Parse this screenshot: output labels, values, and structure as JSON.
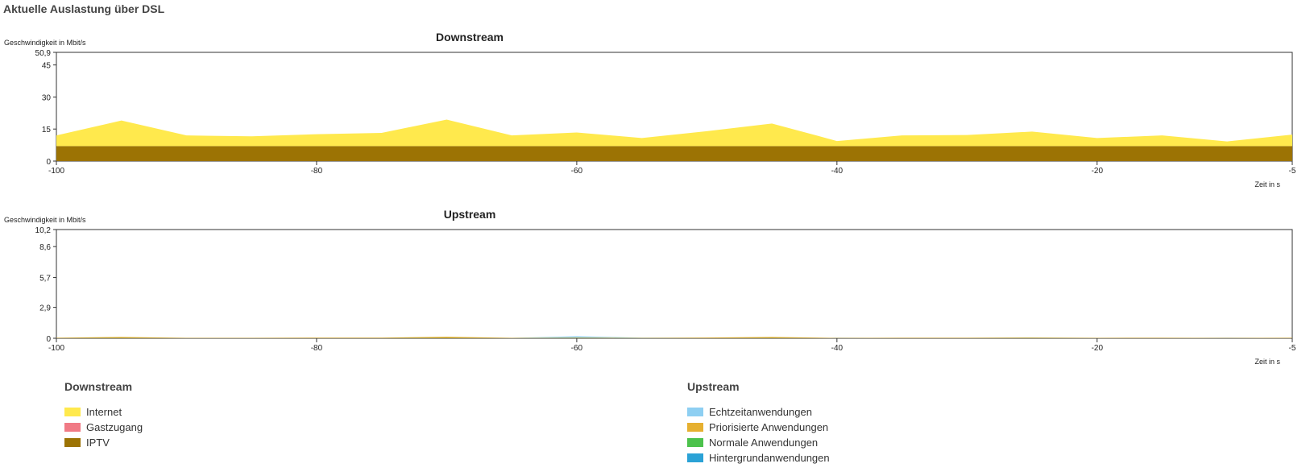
{
  "page": {
    "title": "Aktuelle Auslastung über DSL"
  },
  "colors": {
    "internet": "#ffe94d",
    "gastzugang": "#f07a85",
    "iptv": "#9c7304",
    "echtzeit": "#8ecff2",
    "priorisiert": "#e6b030",
    "normal": "#4cc24c",
    "hintergrund": "#2ba2d6"
  },
  "chart_data": [
    {
      "type": "area",
      "title": "Downstream",
      "ylabel": "Geschwindigkeit in Mbit/s",
      "xlabel": "Zeit in s",
      "xlim": [
        -100,
        -5
      ],
      "ylim": [
        0,
        50.9
      ],
      "x_ticks": [
        -100,
        -80,
        -60,
        -40,
        -20,
        -5
      ],
      "x_tick_labels": [
        "-100",
        "-80",
        "-60",
        "-40",
        "-20",
        "-5"
      ],
      "y_ticks": [
        0,
        15,
        30,
        45,
        50.9
      ],
      "y_tick_labels": [
        "0",
        "15",
        "30",
        "45",
        "50,9"
      ],
      "x": [
        -100,
        -95,
        -90,
        -85,
        -80,
        -75,
        -70,
        -65,
        -60,
        -55,
        -50,
        -45,
        -40,
        -35,
        -30,
        -25,
        -20,
        -15,
        -10,
        -5
      ],
      "series": [
        {
          "name": "IPTV",
          "color_key": "iptv",
          "values": [
            7,
            7,
            7,
            7,
            7,
            7,
            7,
            7,
            7,
            7,
            7,
            7,
            7,
            7,
            7,
            7,
            7,
            7,
            7,
            7
          ]
        },
        {
          "name": "Gastzugang",
          "color_key": "gastzugang",
          "values": [
            0,
            0,
            0,
            0,
            0,
            0,
            0,
            0,
            0,
            0,
            0,
            0,
            0,
            0,
            0,
            0,
            0,
            0,
            0,
            0
          ]
        },
        {
          "name": "Internet",
          "color_key": "internet",
          "values": [
            5,
            12,
            5,
            4.6,
            5.6,
            6.2,
            12.4,
            5,
            6.4,
            3.8,
            7,
            10.6,
            2.4,
            5,
            5.2,
            6.8,
            3.8,
            5,
            2.2,
            5.4
          ]
        }
      ]
    },
    {
      "type": "area",
      "title": "Upstream",
      "ylabel": "Geschwindigkeit in Mbit/s",
      "xlabel": "Zeit in s",
      "xlim": [
        -100,
        -5
      ],
      "ylim": [
        0,
        10.2
      ],
      "x_ticks": [
        -100,
        -80,
        -60,
        -40,
        -20,
        -5
      ],
      "x_tick_labels": [
        "-100",
        "-80",
        "-60",
        "-40",
        "-20",
        "-5"
      ],
      "y_ticks": [
        0,
        2.9,
        5.7,
        8.6,
        10.2
      ],
      "y_tick_labels": [
        "0",
        "2,9",
        "5,7",
        "8,6",
        "10,2"
      ],
      "x": [
        -100,
        -95,
        -90,
        -85,
        -80,
        -75,
        -70,
        -65,
        -60,
        -55,
        -50,
        -45,
        -40,
        -35,
        -30,
        -25,
        -20,
        -15,
        -10,
        -5
      ],
      "series": [
        {
          "name": "Hintergrundanwendungen",
          "color_key": "hintergrund",
          "values": [
            0,
            0,
            0,
            0,
            0,
            0,
            0,
            0,
            0,
            0,
            0,
            0,
            0,
            0,
            0,
            0,
            0,
            0,
            0,
            0
          ]
        },
        {
          "name": "Normale Anwendungen",
          "color_key": "normal",
          "values": [
            0.01,
            0.02,
            0.01,
            0.01,
            0.01,
            0.01,
            0.02,
            0.01,
            0.02,
            0.01,
            0.01,
            0.02,
            0.01,
            0.01,
            0.01,
            0.02,
            0.01,
            0.01,
            0.01,
            0.01
          ]
        },
        {
          "name": "Priorisierte Anwendungen",
          "color_key": "priorisiert",
          "values": [
            0.04,
            0.1,
            0.03,
            0.03,
            0.05,
            0.05,
            0.12,
            0.03,
            0.05,
            0.03,
            0.06,
            0.1,
            0.02,
            0.04,
            0.04,
            0.05,
            0.03,
            0.04,
            0.02,
            0.04
          ]
        },
        {
          "name": "Echtzeitanwendungen",
          "color_key": "echtzeit",
          "values": [
            0,
            0,
            0,
            0,
            0,
            0,
            0,
            0,
            0.12,
            0.02,
            0,
            0,
            0,
            0,
            0,
            0,
            0,
            0,
            0,
            0
          ]
        }
      ]
    }
  ],
  "legend": {
    "downstream": {
      "title": "Downstream",
      "items": [
        {
          "label": "Internet",
          "color_key": "internet"
        },
        {
          "label": "Gastzugang",
          "color_key": "gastzugang"
        },
        {
          "label": "IPTV",
          "color_key": "iptv"
        }
      ]
    },
    "upstream": {
      "title": "Upstream",
      "items": [
        {
          "label": "Echtzeitanwendungen",
          "color_key": "echtzeit"
        },
        {
          "label": "Priorisierte Anwendungen",
          "color_key": "priorisiert"
        },
        {
          "label": "Normale Anwendungen",
          "color_key": "normal"
        },
        {
          "label": "Hintergrundanwendungen",
          "color_key": "hintergrund"
        }
      ]
    }
  }
}
